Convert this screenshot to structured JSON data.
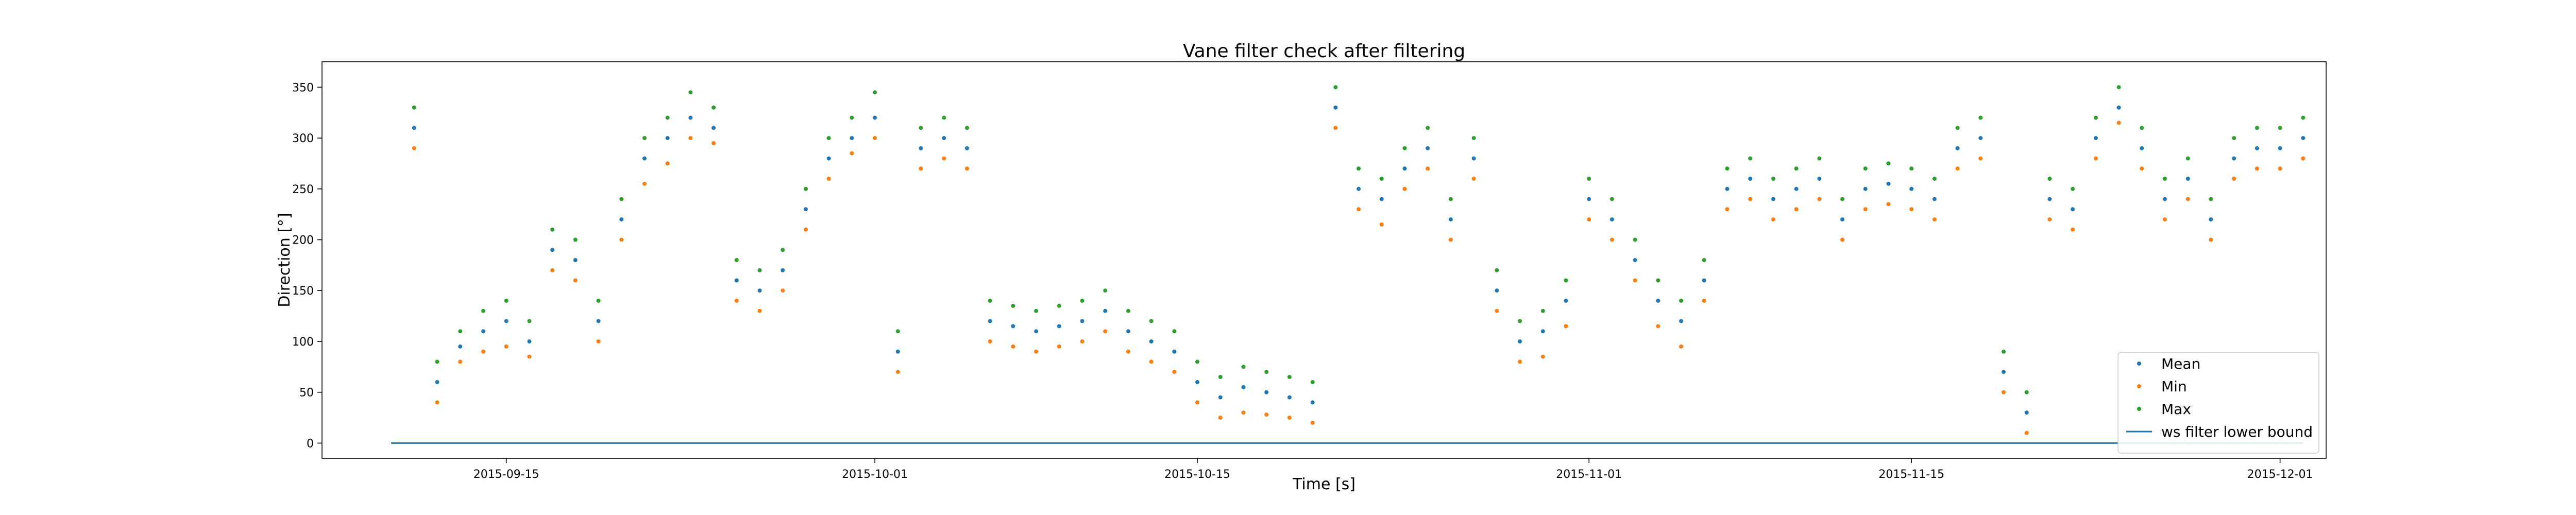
{
  "chart_data": {
    "type": "scatter",
    "title": "Vane filter check after filtering",
    "xlabel": "Time [s]",
    "ylabel": "Direction [°]",
    "x_range": [
      "2015-09-07",
      "2015-12-03"
    ],
    "ylim": [
      -15,
      375
    ],
    "x_ticks": [
      {
        "date": "2015-09-15",
        "label": "2015-09-15"
      },
      {
        "date": "2015-10-01",
        "label": "2015-10-01"
      },
      {
        "date": "2015-10-15",
        "label": "2015-10-15"
      },
      {
        "date": "2015-11-01",
        "label": "2015-11-01"
      },
      {
        "date": "2015-11-15",
        "label": "2015-11-15"
      },
      {
        "date": "2015-12-01",
        "label": "2015-12-01"
      }
    ],
    "y_ticks": [
      0,
      50,
      100,
      150,
      200,
      250,
      300,
      350
    ],
    "grid": false,
    "legend_position": "bottom-right",
    "colors": {
      "mean": "#1f77b4",
      "min": "#ff7f0e",
      "max": "#2ca02c",
      "bound": "#1f77b4"
    },
    "series": [
      {
        "name": "Mean",
        "kind": "points",
        "x": [
          "2015-09-11",
          "2015-09-12",
          "2015-09-13",
          "2015-09-14",
          "2015-09-15",
          "2015-09-16",
          "2015-09-17",
          "2015-09-18",
          "2015-09-19",
          "2015-09-20",
          "2015-09-21",
          "2015-09-22",
          "2015-09-23",
          "2015-09-24",
          "2015-09-25",
          "2015-09-26",
          "2015-09-27",
          "2015-09-28",
          "2015-09-29",
          "2015-09-30",
          "2015-10-01",
          "2015-10-02",
          "2015-10-03",
          "2015-10-04",
          "2015-10-05",
          "2015-10-06",
          "2015-10-07",
          "2015-10-08",
          "2015-10-09",
          "2015-10-10",
          "2015-10-11",
          "2015-10-12",
          "2015-10-13",
          "2015-10-14",
          "2015-10-15",
          "2015-10-16",
          "2015-10-17",
          "2015-10-18",
          "2015-10-19",
          "2015-10-20",
          "2015-10-21",
          "2015-10-22",
          "2015-10-23",
          "2015-10-24",
          "2015-10-25",
          "2015-10-26",
          "2015-10-27",
          "2015-10-28",
          "2015-10-29",
          "2015-10-30",
          "2015-10-31",
          "2015-11-01",
          "2015-11-02",
          "2015-11-03",
          "2015-11-04",
          "2015-11-05",
          "2015-11-06",
          "2015-11-07",
          "2015-11-08",
          "2015-11-09",
          "2015-11-10",
          "2015-11-11",
          "2015-11-12",
          "2015-11-13",
          "2015-11-14",
          "2015-11-15",
          "2015-11-16",
          "2015-11-17",
          "2015-11-18",
          "2015-11-19",
          "2015-11-20",
          "2015-11-21",
          "2015-11-22",
          "2015-11-23",
          "2015-11-24",
          "2015-11-25",
          "2015-11-26",
          "2015-11-27",
          "2015-11-28",
          "2015-11-29",
          "2015-11-30",
          "2015-12-01",
          "2015-12-02"
        ],
        "values": [
          310,
          60,
          95,
          110,
          120,
          100,
          190,
          180,
          120,
          220,
          280,
          300,
          320,
          310,
          160,
          150,
          170,
          230,
          280,
          300,
          320,
          90,
          290,
          300,
          290,
          120,
          115,
          110,
          115,
          120,
          130,
          110,
          100,
          90,
          60,
          45,
          55,
          50,
          45,
          40,
          330,
          250,
          240,
          270,
          290,
          220,
          280,
          150,
          100,
          110,
          140,
          240,
          220,
          180,
          140,
          120,
          160,
          250,
          260,
          240,
          250,
          260,
          220,
          250,
          255,
          250,
          240,
          290,
          300,
          70,
          30,
          240,
          230,
          300,
          330,
          290,
          240,
          260,
          220,
          280,
          290,
          290,
          300
        ]
      },
      {
        "name": "Min",
        "kind": "points",
        "x": [
          "2015-09-11",
          "2015-09-12",
          "2015-09-13",
          "2015-09-14",
          "2015-09-15",
          "2015-09-16",
          "2015-09-17",
          "2015-09-18",
          "2015-09-19",
          "2015-09-20",
          "2015-09-21",
          "2015-09-22",
          "2015-09-23",
          "2015-09-24",
          "2015-09-25",
          "2015-09-26",
          "2015-09-27",
          "2015-09-28",
          "2015-09-29",
          "2015-09-30",
          "2015-10-01",
          "2015-10-02",
          "2015-10-03",
          "2015-10-04",
          "2015-10-05",
          "2015-10-06",
          "2015-10-07",
          "2015-10-08",
          "2015-10-09",
          "2015-10-10",
          "2015-10-11",
          "2015-10-12",
          "2015-10-13",
          "2015-10-14",
          "2015-10-15",
          "2015-10-16",
          "2015-10-17",
          "2015-10-18",
          "2015-10-19",
          "2015-10-20",
          "2015-10-21",
          "2015-10-22",
          "2015-10-23",
          "2015-10-24",
          "2015-10-25",
          "2015-10-26",
          "2015-10-27",
          "2015-10-28",
          "2015-10-29",
          "2015-10-30",
          "2015-10-31",
          "2015-11-01",
          "2015-11-02",
          "2015-11-03",
          "2015-11-04",
          "2015-11-05",
          "2015-11-06",
          "2015-11-07",
          "2015-11-08",
          "2015-11-09",
          "2015-11-10",
          "2015-11-11",
          "2015-11-12",
          "2015-11-13",
          "2015-11-14",
          "2015-11-15",
          "2015-11-16",
          "2015-11-17",
          "2015-11-18",
          "2015-11-19",
          "2015-11-20",
          "2015-11-21",
          "2015-11-22",
          "2015-11-23",
          "2015-11-24",
          "2015-11-25",
          "2015-11-26",
          "2015-11-27",
          "2015-11-28",
          "2015-11-29",
          "2015-11-30",
          "2015-12-01",
          "2015-12-02"
        ],
        "values": [
          290,
          40,
          80,
          90,
          95,
          85,
          170,
          160,
          100,
          200,
          255,
          275,
          300,
          295,
          140,
          130,
          150,
          210,
          260,
          285,
          300,
          70,
          270,
          280,
          270,
          100,
          95,
          90,
          95,
          100,
          110,
          90,
          80,
          70,
          40,
          25,
          30,
          28,
          25,
          20,
          310,
          230,
          215,
          250,
          270,
          200,
          260,
          130,
          80,
          85,
          115,
          220,
          200,
          160,
          115,
          95,
          140,
          230,
          240,
          220,
          230,
          240,
          200,
          230,
          235,
          230,
          220,
          270,
          280,
          50,
          10,
          220,
          210,
          280,
          315,
          270,
          220,
          240,
          200,
          260,
          270,
          270,
          280
        ]
      },
      {
        "name": "Max",
        "kind": "points",
        "x": [
          "2015-09-11",
          "2015-09-12",
          "2015-09-13",
          "2015-09-14",
          "2015-09-15",
          "2015-09-16",
          "2015-09-17",
          "2015-09-18",
          "2015-09-19",
          "2015-09-20",
          "2015-09-21",
          "2015-09-22",
          "2015-09-23",
          "2015-09-24",
          "2015-09-25",
          "2015-09-26",
          "2015-09-27",
          "2015-09-28",
          "2015-09-29",
          "2015-09-30",
          "2015-10-01",
          "2015-10-02",
          "2015-10-03",
          "2015-10-04",
          "2015-10-05",
          "2015-10-06",
          "2015-10-07",
          "2015-10-08",
          "2015-10-09",
          "2015-10-10",
          "2015-10-11",
          "2015-10-12",
          "2015-10-13",
          "2015-10-14",
          "2015-10-15",
          "2015-10-16",
          "2015-10-17",
          "2015-10-18",
          "2015-10-19",
          "2015-10-20",
          "2015-10-21",
          "2015-10-22",
          "2015-10-23",
          "2015-10-24",
          "2015-10-25",
          "2015-10-26",
          "2015-10-27",
          "2015-10-28",
          "2015-10-29",
          "2015-10-30",
          "2015-10-31",
          "2015-11-01",
          "2015-11-02",
          "2015-11-03",
          "2015-11-04",
          "2015-11-05",
          "2015-11-06",
          "2015-11-07",
          "2015-11-08",
          "2015-11-09",
          "2015-11-10",
          "2015-11-11",
          "2015-11-12",
          "2015-11-13",
          "2015-11-14",
          "2015-11-15",
          "2015-11-16",
          "2015-11-17",
          "2015-11-18",
          "2015-11-19",
          "2015-11-20",
          "2015-11-21",
          "2015-11-22",
          "2015-11-23",
          "2015-11-24",
          "2015-11-25",
          "2015-11-26",
          "2015-11-27",
          "2015-11-28",
          "2015-11-29",
          "2015-11-30",
          "2015-12-01",
          "2015-12-02"
        ],
        "values": [
          330,
          80,
          110,
          130,
          140,
          120,
          210,
          200,
          140,
          240,
          300,
          320,
          345,
          330,
          180,
          170,
          190,
          250,
          300,
          320,
          345,
          110,
          310,
          320,
          310,
          140,
          135,
          130,
          135,
          140,
          150,
          130,
          120,
          110,
          80,
          65,
          75,
          70,
          65,
          60,
          350,
          270,
          260,
          290,
          310,
          240,
          300,
          170,
          120,
          130,
          160,
          260,
          240,
          200,
          160,
          140,
          180,
          270,
          280,
          260,
          270,
          280,
          240,
          270,
          275,
          270,
          260,
          310,
          320,
          90,
          50,
          260,
          250,
          320,
          350,
          310,
          260,
          280,
          240,
          300,
          310,
          310,
          320
        ]
      },
      {
        "name": "ws filter lower bound",
        "kind": "line",
        "x": [
          "2015-09-10",
          "2015-12-02"
        ],
        "values": [
          0,
          0
        ]
      }
    ]
  }
}
